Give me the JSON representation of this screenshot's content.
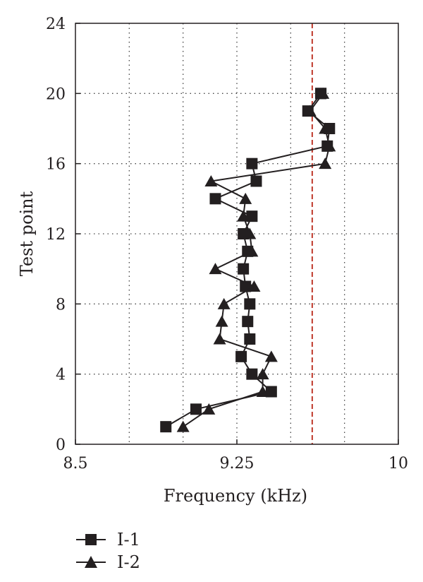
{
  "chart_data": {
    "type": "line",
    "xlabel": "Frequency (kHz)",
    "ylabel": "Test point",
    "xlim": [
      8.5,
      10
    ],
    "ylim": [
      0,
      24
    ],
    "xticks": [
      8.5,
      9.25,
      10
    ],
    "xtick_labels": [
      "8.5",
      "9.25",
      "10"
    ],
    "yticks": [
      0,
      4,
      8,
      12,
      16,
      20,
      24
    ],
    "ytick_labels": [
      "0",
      "4",
      "8",
      "12",
      "16",
      "20",
      "24"
    ],
    "x_grid": [
      8.75,
      9.0,
      9.25,
      9.5,
      9.75
    ],
    "y_grid": [
      4,
      8,
      12,
      16,
      20
    ],
    "grid": "dotted",
    "reference_line": {
      "x": 9.6,
      "color": "#c0392b",
      "style": "dashed"
    },
    "legend_position": "bottom-left, below plot",
    "series": [
      {
        "name": "I-1",
        "marker": "square",
        "color": "#231f20",
        "x": [
          8.92,
          9.06,
          9.41,
          9.32,
          9.27,
          9.31,
          9.3,
          9.31,
          9.29,
          9.28,
          9.3,
          9.28,
          9.32,
          9.15,
          9.34,
          9.32,
          9.67,
          9.68,
          9.58,
          9.64,
          9.64
        ],
        "y": [
          1,
          2,
          3,
          4,
          5,
          6,
          7,
          8,
          9,
          10,
          11,
          12,
          13,
          14,
          15,
          16,
          17,
          18,
          19,
          20,
          20
        ]
      },
      {
        "name": "I-2",
        "marker": "triangle",
        "color": "#231f20",
        "x": [
          9.0,
          9.12,
          9.37,
          9.37,
          9.41,
          9.17,
          9.18,
          9.19,
          9.33,
          9.15,
          9.32,
          9.31,
          9.28,
          9.29,
          9.13,
          9.66,
          9.68,
          9.66,
          9.59,
          9.65
        ],
        "y": [
          1,
          2,
          3,
          4,
          5,
          6,
          7,
          8,
          9,
          10,
          11,
          12,
          13,
          14,
          15,
          16,
          17,
          18,
          19,
          20
        ]
      }
    ]
  }
}
